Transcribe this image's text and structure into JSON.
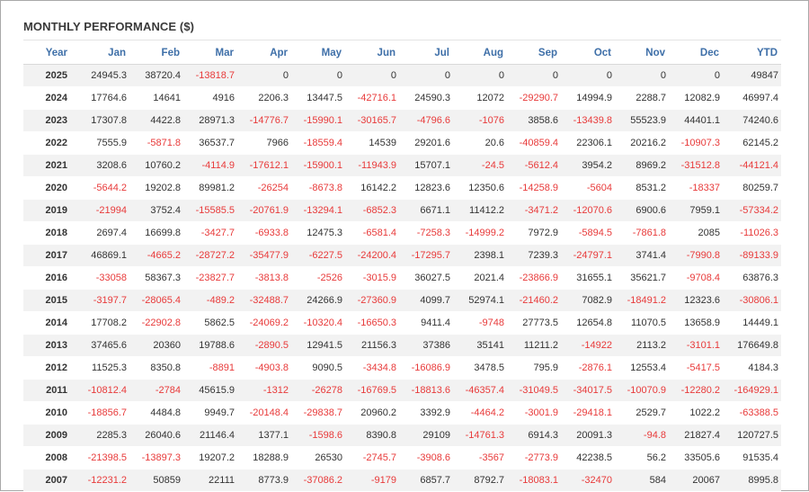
{
  "title": "MONTHLY PERFORMANCE ($)",
  "chart_data": {
    "type": "table",
    "title": "MONTHLY PERFORMANCE ($)",
    "columns": [
      "Year",
      "Jan",
      "Feb",
      "Mar",
      "Apr",
      "May",
      "Jun",
      "Jul",
      "Aug",
      "Sep",
      "Oct",
      "Nov",
      "Dec",
      "YTD"
    ],
    "rows": [
      [
        "2025",
        "24945.3",
        "38720.4",
        "-13818.7",
        "0",
        "0",
        "0",
        "0",
        "0",
        "0",
        "0",
        "0",
        "0",
        "49847"
      ],
      [
        "2024",
        "17764.6",
        "14641",
        "4916",
        "2206.3",
        "13447.5",
        "-42716.1",
        "24590.3",
        "12072",
        "-29290.7",
        "14994.9",
        "2288.7",
        "12082.9",
        "46997.4"
      ],
      [
        "2023",
        "17307.8",
        "4422.8",
        "28971.3",
        "-14776.7",
        "-15990.1",
        "-30165.7",
        "-4796.6",
        "-1076",
        "3858.6",
        "-13439.8",
        "55523.9",
        "44401.1",
        "74240.6"
      ],
      [
        "2022",
        "7555.9",
        "-5871.8",
        "36537.7",
        "7966",
        "-18559.4",
        "14539",
        "29201.6",
        "20.6",
        "-40859.4",
        "22306.1",
        "20216.2",
        "-10907.3",
        "62145.2"
      ],
      [
        "2021",
        "3208.6",
        "10760.2",
        "-4114.9",
        "-17612.1",
        "-15900.1",
        "-11943.9",
        "15707.1",
        "-24.5",
        "-5612.4",
        "3954.2",
        "8969.2",
        "-31512.8",
        "-44121.4"
      ],
      [
        "2020",
        "-5644.2",
        "19202.8",
        "89981.2",
        "-26254",
        "-8673.8",
        "16142.2",
        "12823.6",
        "12350.6",
        "-14258.9",
        "-5604",
        "8531.2",
        "-18337",
        "80259.7"
      ],
      [
        "2019",
        "-21994",
        "3752.4",
        "-15585.5",
        "-20761.9",
        "-13294.1",
        "-6852.3",
        "6671.1",
        "11412.2",
        "-3471.2",
        "-12070.6",
        "6900.6",
        "7959.1",
        "-57334.2"
      ],
      [
        "2018",
        "2697.4",
        "16699.8",
        "-3427.7",
        "-6933.8",
        "12475.3",
        "-6581.4",
        "-7258.3",
        "-14999.2",
        "7972.9",
        "-5894.5",
        "-7861.8",
        "2085",
        "-11026.3"
      ],
      [
        "2017",
        "46869.1",
        "-4665.2",
        "-28727.2",
        "-35477.9",
        "-6227.5",
        "-24200.4",
        "-17295.7",
        "2398.1",
        "7239.3",
        "-24797.1",
        "3741.4",
        "-7990.8",
        "-89133.9"
      ],
      [
        "2016",
        "-33058",
        "58367.3",
        "-23827.7",
        "-3813.8",
        "-2526",
        "-3015.9",
        "36027.5",
        "2021.4",
        "-23866.9",
        "31655.1",
        "35621.7",
        "-9708.4",
        "63876.3"
      ],
      [
        "2015",
        "-3197.7",
        "-28065.4",
        "-489.2",
        "-32488.7",
        "24266.9",
        "-27360.9",
        "4099.7",
        "52974.1",
        "-21460.2",
        "7082.9",
        "-18491.2",
        "12323.6",
        "-30806.1"
      ],
      [
        "2014",
        "17708.2",
        "-22902.8",
        "5862.5",
        "-24069.2",
        "-10320.4",
        "-16650.3",
        "9411.4",
        "-9748",
        "27773.5",
        "12654.8",
        "11070.5",
        "13658.9",
        "14449.1"
      ],
      [
        "2013",
        "37465.6",
        "20360",
        "19788.6",
        "-2890.5",
        "12941.5",
        "21156.3",
        "37386",
        "35141",
        "11211.2",
        "-14922",
        "2113.2",
        "-3101.1",
        "176649.8"
      ],
      [
        "2012",
        "11525.3",
        "8350.8",
        "-8891",
        "-4903.8",
        "9090.5",
        "-3434.8",
        "-16086.9",
        "3478.5",
        "795.9",
        "-2876.1",
        "12553.4",
        "-5417.5",
        "4184.3"
      ],
      [
        "2011",
        "-10812.4",
        "-2784",
        "45615.9",
        "-1312",
        "-26278",
        "-16769.5",
        "-18813.6",
        "-46357.4",
        "-31049.5",
        "-34017.5",
        "-10070.9",
        "-12280.2",
        "-164929.1"
      ],
      [
        "2010",
        "-18856.7",
        "4484.8",
        "9949.7",
        "-20148.4",
        "-29838.7",
        "20960.2",
        "3392.9",
        "-4464.2",
        "-3001.9",
        "-29418.1",
        "2529.7",
        "1022.2",
        "-63388.5"
      ],
      [
        "2009",
        "2285.3",
        "26040.6",
        "21146.4",
        "1377.1",
        "-1598.6",
        "8390.8",
        "29109",
        "-14761.3",
        "6914.3",
        "20091.3",
        "-94.8",
        "21827.4",
        "120727.5"
      ],
      [
        "2008",
        "-21398.5",
        "-13897.3",
        "19207.2",
        "18288.9",
        "26530",
        "-2745.7",
        "-3908.6",
        "-3567",
        "-2773.9",
        "42238.5",
        "56.2",
        "33505.6",
        "91535.4"
      ],
      [
        "2007",
        "-12231.2",
        "50859",
        "22111",
        "8773.9",
        "-37086.2",
        "-9179",
        "6857.7",
        "8792.7",
        "-18083.1",
        "-32470",
        "584",
        "20067",
        "8995.8"
      ]
    ]
  },
  "colors": {
    "header_text": "#3e6fa8",
    "negative": "#e83a3a",
    "text": "#333333",
    "stripe": "#f2f2f2"
  }
}
